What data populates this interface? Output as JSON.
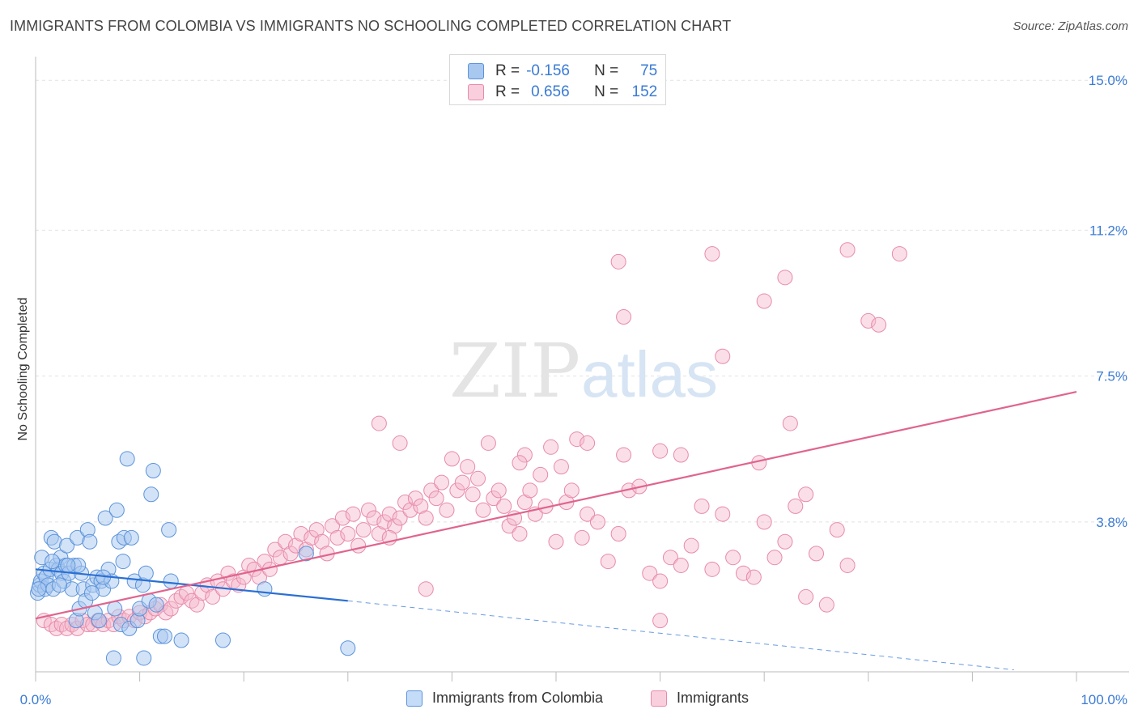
{
  "title": "IMMIGRANTS FROM COLOMBIA VS IMMIGRANTS NO SCHOOLING COMPLETED CORRELATION CHART",
  "source": "Source: ZipAtlas.com",
  "watermark": {
    "zip": "ZIP",
    "atlas": "atlas"
  },
  "colors": {
    "blue_fill": "#a8c8f0",
    "blue_stroke": "#5b93db",
    "blue_line": "#2a6fd4",
    "pink_fill": "#f5b8cc",
    "pink_stroke": "#e88aaa",
    "pink_line": "#e0648e",
    "value_text": "#3a7bd5"
  },
  "stats_legend": {
    "row1": {
      "r_label": "R =",
      "r_value": "-0.156",
      "n_label": "N =",
      "n_value": "75"
    },
    "row2": {
      "r_label": "R =",
      "r_value": "0.656",
      "n_label": "N =",
      "n_value": "152"
    }
  },
  "chart_data": {
    "type": "scatter",
    "title": "IMMIGRANTS FROM COLOMBIA VS IMMIGRANTS NO SCHOOLING COMPLETED CORRELATION CHART",
    "xlabel": "",
    "ylabel": "No Schooling Completed",
    "x_tick_labels": [
      "0.0%",
      "100.0%"
    ],
    "y_tick_labels": [
      "3.8%",
      "7.5%",
      "11.2%",
      "15.0%"
    ],
    "xlim": [
      0,
      100
    ],
    "ylim": [
      0,
      15.6
    ],
    "y_ticks": [
      3.8,
      7.5,
      11.2,
      15.0
    ],
    "grid": true,
    "legend_position": "bottom",
    "series": [
      {
        "name": "Immigrants from Colombia",
        "color": "blue",
        "r": -0.156,
        "n": 75,
        "trend": {
          "x0": 0,
          "y0": 2.6,
          "x1": 30,
          "y1": 1.8,
          "dashed_to_x": 94,
          "dashed_to_y": 0.05
        },
        "points": [
          [
            0.2,
            2.0
          ],
          [
            0.4,
            2.2
          ],
          [
            0.5,
            2.3
          ],
          [
            0.6,
            2.9
          ],
          [
            0.8,
            2.5
          ],
          [
            0.9,
            2.1
          ],
          [
            1.0,
            2.4
          ],
          [
            1.2,
            2.2
          ],
          [
            1.4,
            2.6
          ],
          [
            1.5,
            3.4
          ],
          [
            1.7,
            2.1
          ],
          [
            1.8,
            3.3
          ],
          [
            2.0,
            2.7
          ],
          [
            2.2,
            2.6
          ],
          [
            2.4,
            2.9
          ],
          [
            2.5,
            2.5
          ],
          [
            2.7,
            2.3
          ],
          [
            2.9,
            2.7
          ],
          [
            3.0,
            3.2
          ],
          [
            3.2,
            2.5
          ],
          [
            3.5,
            2.1
          ],
          [
            3.7,
            2.7
          ],
          [
            3.9,
            1.3
          ],
          [
            4.0,
            3.4
          ],
          [
            4.2,
            1.6
          ],
          [
            4.4,
            2.5
          ],
          [
            4.6,
            2.1
          ],
          [
            4.8,
            1.8
          ],
          [
            5.0,
            3.6
          ],
          [
            5.2,
            3.3
          ],
          [
            5.5,
            2.2
          ],
          [
            5.7,
            1.5
          ],
          [
            5.9,
            2.4
          ],
          [
            6.1,
            1.3
          ],
          [
            6.3,
            2.3
          ],
          [
            6.5,
            2.1
          ],
          [
            6.7,
            3.9
          ],
          [
            7.0,
            2.6
          ],
          [
            7.3,
            2.3
          ],
          [
            7.6,
            1.6
          ],
          [
            7.8,
            4.1
          ],
          [
            8.0,
            3.3
          ],
          [
            8.2,
            1.2
          ],
          [
            8.4,
            2.8
          ],
          [
            8.5,
            3.4
          ],
          [
            8.8,
            5.4
          ],
          [
            9.0,
            1.1
          ],
          [
            9.2,
            3.4
          ],
          [
            9.5,
            2.3
          ],
          [
            9.8,
            1.3
          ],
          [
            10.0,
            1.6
          ],
          [
            10.3,
            2.2
          ],
          [
            10.6,
            2.5
          ],
          [
            10.9,
            1.8
          ],
          [
            11.1,
            4.5
          ],
          [
            11.3,
            5.1
          ],
          [
            11.6,
            1.7
          ],
          [
            12.0,
            0.9
          ],
          [
            12.4,
            0.9
          ],
          [
            12.8,
            3.6
          ],
          [
            13.0,
            2.3
          ],
          [
            14.0,
            0.8
          ],
          [
            18.0,
            0.8
          ],
          [
            22.0,
            2.1
          ],
          [
            26.0,
            3.0
          ],
          [
            30.0,
            0.6
          ],
          [
            10.4,
            0.35
          ],
          [
            7.5,
            0.35
          ],
          [
            6.5,
            2.4
          ],
          [
            4.1,
            2.7
          ],
          [
            3.1,
            2.7
          ],
          [
            2.3,
            2.2
          ],
          [
            1.6,
            2.8
          ],
          [
            0.3,
            2.1
          ],
          [
            5.4,
            2.0
          ]
        ]
      },
      {
        "name": "Immigrants",
        "color": "pink",
        "r": 0.656,
        "n": 152,
        "trend": {
          "x0": 0,
          "y0": 1.35,
          "x1": 100,
          "y1": 7.1
        },
        "points": [
          [
            0.8,
            1.3
          ],
          [
            1.5,
            1.2
          ],
          [
            2.0,
            1.1
          ],
          [
            2.5,
            1.2
          ],
          [
            3.0,
            1.1
          ],
          [
            3.5,
            1.2
          ],
          [
            4.0,
            1.1
          ],
          [
            4.5,
            1.3
          ],
          [
            5.0,
            1.2
          ],
          [
            5.5,
            1.2
          ],
          [
            6.0,
            1.3
          ],
          [
            6.5,
            1.2
          ],
          [
            7.0,
            1.3
          ],
          [
            7.5,
            1.2
          ],
          [
            8.0,
            1.4
          ],
          [
            8.5,
            1.3
          ],
          [
            9.0,
            1.4
          ],
          [
            9.5,
            1.3
          ],
          [
            10.0,
            1.5
          ],
          [
            10.5,
            1.4
          ],
          [
            11.0,
            1.5
          ],
          [
            11.5,
            1.6
          ],
          [
            12.0,
            1.7
          ],
          [
            12.5,
            1.5
          ],
          [
            13.0,
            1.6
          ],
          [
            13.5,
            1.8
          ],
          [
            14.0,
            1.9
          ],
          [
            14.5,
            2.0
          ],
          [
            15.0,
            1.8
          ],
          [
            15.5,
            1.7
          ],
          [
            16.0,
            2.0
          ],
          [
            16.5,
            2.2
          ],
          [
            17.0,
            1.9
          ],
          [
            17.5,
            2.3
          ],
          [
            18.0,
            2.1
          ],
          [
            18.5,
            2.5
          ],
          [
            19.0,
            2.3
          ],
          [
            19.5,
            2.2
          ],
          [
            20.0,
            2.4
          ],
          [
            20.5,
            2.7
          ],
          [
            21.0,
            2.6
          ],
          [
            21.5,
            2.4
          ],
          [
            22.0,
            2.8
          ],
          [
            22.5,
            2.6
          ],
          [
            23.0,
            3.1
          ],
          [
            23.5,
            2.9
          ],
          [
            24.0,
            3.3
          ],
          [
            24.5,
            3.0
          ],
          [
            25.0,
            3.2
          ],
          [
            25.5,
            3.5
          ],
          [
            26.0,
            3.1
          ],
          [
            26.5,
            3.4
          ],
          [
            27.0,
            3.6
          ],
          [
            27.5,
            3.3
          ],
          [
            28.0,
            3.0
          ],
          [
            28.5,
            3.7
          ],
          [
            29.0,
            3.4
          ],
          [
            29.5,
            3.9
          ],
          [
            30.0,
            3.5
          ],
          [
            30.5,
            4.0
          ],
          [
            31.0,
            3.2
          ],
          [
            31.5,
            3.6
          ],
          [
            32.0,
            4.1
          ],
          [
            32.5,
            3.9
          ],
          [
            33.0,
            3.5
          ],
          [
            33.5,
            3.8
          ],
          [
            34.0,
            4.0
          ],
          [
            34.5,
            3.7
          ],
          [
            35.0,
            3.9
          ],
          [
            35.5,
            4.3
          ],
          [
            36.0,
            4.1
          ],
          [
            36.5,
            4.4
          ],
          [
            37.0,
            4.2
          ],
          [
            37.5,
            3.9
          ],
          [
            38.0,
            4.6
          ],
          [
            38.5,
            4.4
          ],
          [
            39.0,
            4.8
          ],
          [
            39.5,
            4.1
          ],
          [
            40.0,
            5.4
          ],
          [
            40.5,
            4.6
          ],
          [
            41.0,
            4.8
          ],
          [
            41.5,
            5.2
          ],
          [
            42.0,
            4.5
          ],
          [
            42.5,
            4.9
          ],
          [
            43.0,
            4.1
          ],
          [
            43.5,
            5.8
          ],
          [
            44.0,
            4.4
          ],
          [
            44.5,
            4.6
          ],
          [
            45.0,
            4.2
          ],
          [
            45.5,
            3.7
          ],
          [
            46.0,
            3.9
          ],
          [
            46.5,
            3.5
          ],
          [
            47.0,
            4.3
          ],
          [
            47.5,
            4.6
          ],
          [
            48.0,
            4.0
          ],
          [
            48.5,
            5.0
          ],
          [
            49.0,
            4.2
          ],
          [
            49.5,
            5.7
          ],
          [
            50.0,
            3.3
          ],
          [
            50.5,
            5.2
          ],
          [
            51.0,
            4.3
          ],
          [
            51.5,
            4.6
          ],
          [
            52.0,
            5.9
          ],
          [
            52.5,
            3.4
          ],
          [
            53.0,
            4.0
          ],
          [
            54.0,
            3.8
          ],
          [
            55.0,
            2.8
          ],
          [
            56.0,
            3.5
          ],
          [
            57.0,
            4.6
          ],
          [
            58.0,
            4.7
          ],
          [
            59.0,
            2.5
          ],
          [
            60.0,
            2.3
          ],
          [
            61.0,
            2.9
          ],
          [
            62.0,
            2.7
          ],
          [
            63.0,
            3.2
          ],
          [
            64.0,
            4.2
          ],
          [
            65.0,
            2.6
          ],
          [
            66.0,
            4.0
          ],
          [
            67.0,
            2.9
          ],
          [
            68.0,
            2.5
          ],
          [
            69.0,
            2.4
          ],
          [
            70.0,
            3.8
          ],
          [
            71.0,
            2.9
          ],
          [
            72.0,
            3.3
          ],
          [
            73.0,
            4.2
          ],
          [
            74.0,
            4.5
          ],
          [
            75.0,
            3.0
          ],
          [
            76.0,
            1.7
          ],
          [
            77.0,
            3.6
          ],
          [
            78.0,
            2.7
          ],
          [
            56.0,
            10.4
          ],
          [
            56.5,
            9.0
          ],
          [
            65.0,
            10.6
          ],
          [
            66.0,
            8.0
          ],
          [
            70.0,
            9.4
          ],
          [
            72.0,
            10.0
          ],
          [
            78.0,
            10.7
          ],
          [
            80.0,
            8.9
          ],
          [
            81.0,
            8.8
          ],
          [
            83.0,
            10.6
          ],
          [
            72.5,
            6.3
          ],
          [
            69.5,
            5.3
          ],
          [
            62.0,
            5.5
          ],
          [
            60.0,
            5.6
          ],
          [
            56.5,
            5.5
          ],
          [
            53.0,
            5.8
          ],
          [
            47.0,
            5.5
          ],
          [
            46.5,
            5.3
          ],
          [
            35.0,
            5.8
          ],
          [
            33.0,
            6.3
          ],
          [
            34.0,
            3.4
          ],
          [
            37.5,
            2.1
          ],
          [
            60.0,
            1.3
          ],
          [
            74.0,
            1.9
          ]
        ]
      }
    ]
  },
  "legend": {
    "item1": "Immigrants from Colombia",
    "item2": "Immigrants"
  }
}
